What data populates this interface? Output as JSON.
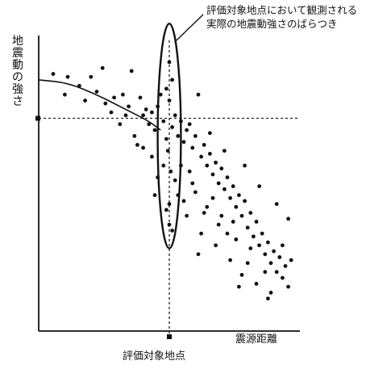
{
  "annotation": "評価対象地点において観測される実際の地震動強さのばらつき",
  "ylabel": "地震動の強さ",
  "xlabel": "震源距離",
  "xtick_label": "評価対象地点",
  "chart_data": {
    "type": "scatter",
    "title": "",
    "xlabel": "震源距離",
    "ylabel": "地震動の強さ",
    "x_ticks": [
      {
        "x": 4.5,
        "label": "評価対象地点"
      }
    ],
    "xlim": [
      0,
      9
    ],
    "ylim": [
      0,
      10
    ],
    "grid": false,
    "dashed_reference": {
      "x": 4.5,
      "y": 7.2
    },
    "ellipse": {
      "cx": 4.5,
      "cy": 6.6,
      "rx": 0.4,
      "ry": 3.8
    },
    "attenuation_curve": [
      [
        0,
        8.5
      ],
      [
        1,
        8.4
      ],
      [
        2,
        8.0
      ],
      [
        3,
        7.5
      ],
      [
        3.8,
        7.1
      ],
      [
        4.2,
        6.8
      ]
    ],
    "series": [
      {
        "points": [
          [
            0.5,
            8.7
          ],
          [
            1.0,
            8.6
          ],
          [
            1.4,
            8.3
          ],
          [
            1.8,
            8.6
          ],
          [
            2.0,
            8.1
          ],
          [
            2.3,
            7.7
          ],
          [
            2.6,
            7.9
          ],
          [
            2.9,
            8.0
          ],
          [
            3.1,
            7.6
          ],
          [
            3.2,
            8.8
          ],
          [
            3.5,
            7.9
          ],
          [
            3.6,
            7.3
          ],
          [
            3.7,
            7.5
          ],
          [
            3.8,
            7.0
          ],
          [
            3.9,
            7.4
          ],
          [
            4.0,
            6.8
          ],
          [
            4.1,
            7.6
          ],
          [
            4.2,
            8.0
          ],
          [
            4.3,
            7.1
          ],
          [
            4.4,
            6.5
          ],
          [
            4.5,
            7.8
          ],
          [
            4.5,
            9.1
          ],
          [
            4.6,
            6.9
          ],
          [
            4.7,
            7.3
          ],
          [
            4.8,
            6.6
          ],
          [
            4.9,
            7.1
          ],
          [
            5.0,
            6.4
          ],
          [
            5.1,
            6.8
          ],
          [
            5.2,
            7.0
          ],
          [
            5.3,
            6.2
          ],
          [
            5.4,
            6.6
          ],
          [
            5.5,
            8.0
          ],
          [
            5.6,
            5.9
          ],
          [
            5.7,
            6.3
          ],
          [
            5.8,
            5.6
          ],
          [
            5.9,
            6.0
          ],
          [
            6.0,
            5.3
          ],
          [
            6.1,
            5.7
          ],
          [
            6.2,
            5.0
          ],
          [
            6.3,
            5.5
          ],
          [
            6.4,
            4.8
          ],
          [
            6.5,
            5.2
          ],
          [
            6.6,
            4.5
          ],
          [
            6.7,
            4.9
          ],
          [
            6.8,
            4.2
          ],
          [
            6.9,
            4.6
          ],
          [
            7.0,
            3.9
          ],
          [
            7.1,
            4.4
          ],
          [
            7.2,
            3.5
          ],
          [
            7.3,
            4.0
          ],
          [
            7.4,
            3.2
          ],
          [
            7.5,
            3.7
          ],
          [
            7.6,
            2.9
          ],
          [
            7.7,
            3.3
          ],
          [
            7.8,
            2.6
          ],
          [
            7.9,
            3.0
          ],
          [
            8.0,
            2.3
          ],
          [
            8.1,
            2.7
          ],
          [
            8.2,
            2.0
          ],
          [
            8.3,
            2.5
          ],
          [
            8.4,
            1.8
          ],
          [
            8.5,
            2.2
          ],
          [
            8.6,
            1.5
          ],
          [
            7.2,
            2.3
          ],
          [
            6.8,
            3.1
          ],
          [
            6.2,
            3.6
          ],
          [
            5.8,
            4.2
          ],
          [
            5.3,
            5.0
          ],
          [
            4.9,
            5.6
          ],
          [
            3.9,
            5.9
          ],
          [
            4.1,
            5.2
          ],
          [
            4.4,
            4.1
          ],
          [
            4.6,
            3.4
          ],
          [
            3.6,
            6.2
          ],
          [
            4.8,
            4.6
          ],
          [
            5.1,
            3.9
          ],
          [
            5.6,
            3.3
          ],
          [
            6.1,
            2.9
          ],
          [
            6.6,
            2.4
          ],
          [
            7.0,
            1.9
          ],
          [
            7.5,
            1.6
          ],
          [
            8.0,
            1.3
          ],
          [
            6.4,
            6.1
          ],
          [
            5.9,
            6.7
          ],
          [
            7.1,
            5.6
          ],
          [
            7.6,
            4.9
          ],
          [
            8.2,
            4.3
          ],
          [
            8.6,
            3.8
          ],
          [
            7.9,
            1.1
          ],
          [
            6.9,
            1.5
          ],
          [
            5.5,
            2.6
          ],
          [
            3.3,
            6.6
          ],
          [
            2.8,
            7.0
          ],
          [
            1.6,
            7.8
          ],
          [
            0.9,
            8.0
          ],
          [
            2.2,
            8.9
          ],
          [
            3.4,
            6.3
          ],
          [
            4.0,
            4.6
          ],
          [
            4.3,
            5.6
          ],
          [
            4.7,
            5.1
          ],
          [
            5.0,
            4.4
          ],
          [
            5.2,
            5.4
          ],
          [
            5.4,
            4.7
          ],
          [
            5.7,
            4.0
          ],
          [
            6.0,
            4.5
          ],
          [
            6.3,
            3.9
          ],
          [
            6.5,
            3.3
          ],
          [
            6.7,
            3.7
          ],
          [
            7.3,
            2.8
          ],
          [
            7.8,
            2.0
          ],
          [
            8.4,
            2.9
          ],
          [
            8.7,
            2.4
          ],
          [
            4.45,
            6.1
          ],
          [
            4.55,
            5.4
          ],
          [
            4.5,
            4.3
          ],
          [
            4.5,
            3.6
          ],
          [
            4.6,
            8.5
          ],
          [
            4.4,
            8.2
          ],
          [
            3.0,
            7.3
          ],
          [
            2.5,
            7.4
          ]
        ]
      }
    ]
  }
}
